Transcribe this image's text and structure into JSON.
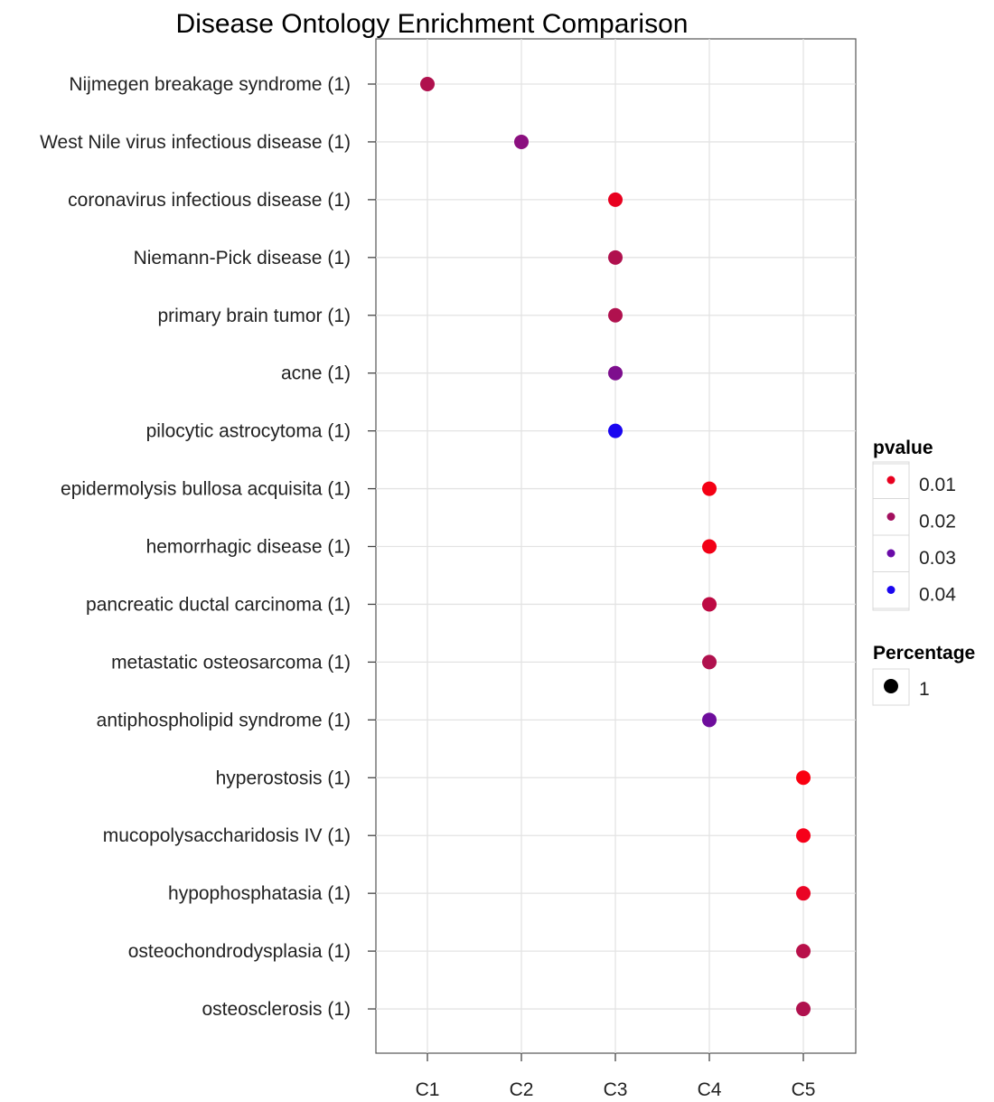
{
  "chart_data": {
    "type": "scatter",
    "title": "Disease Ontology Enrichment Comparison",
    "xlabel": "",
    "ylabel": "",
    "grid": true,
    "legend_position": "right",
    "x_categories": [
      "C1",
      "C2",
      "C3",
      "C4",
      "C5"
    ],
    "y_categories": [
      "Nijmegen breakage syndrome (1)",
      "West Nile virus infectious disease (1)",
      "coronavirus infectious disease (1)",
      "Niemann-Pick disease (1)",
      "primary brain tumor (1)",
      "acne (1)",
      "pilocytic astrocytoma (1)",
      "epidermolysis bullosa acquisita (1)",
      "hemorrhagic disease (1)",
      "pancreatic ductal carcinoma (1)",
      "metastatic osteosarcoma (1)",
      "antiphospholipid syndrome (1)",
      "hyperostosis (1)",
      "mucopolysaccharidosis IV (1)",
      "hypophosphatasia (1)",
      "osteochondrodysplasia (1)",
      "osteosclerosis (1)"
    ],
    "points": [
      {
        "x": "C1",
        "y": "Nijmegen breakage syndrome (1)",
        "color": "#b0114e"
      },
      {
        "x": "C2",
        "y": "West Nile virus infectious disease (1)",
        "color": "#8b0f7f"
      },
      {
        "x": "C3",
        "y": "coronavirus infectious disease (1)",
        "color": "#e8001f"
      },
      {
        "x": "C3",
        "y": "Niemann-Pick disease (1)",
        "color": "#b0114e"
      },
      {
        "x": "C3",
        "y": "primary brain tumor (1)",
        "color": "#b0114e"
      },
      {
        "x": "C3",
        "y": "acne (1)",
        "color": "#7d0e8d"
      },
      {
        "x": "C3",
        "y": "pilocytic astrocytoma (1)",
        "color": "#1a06f0"
      },
      {
        "x": "C4",
        "y": "epidermolysis bullosa acquisita (1)",
        "color": "#f40014"
      },
      {
        "x": "C4",
        "y": "hemorrhagic disease (1)",
        "color": "#f20016"
      },
      {
        "x": "C4",
        "y": "pancreatic ductal carcinoma (1)",
        "color": "#bd0a43"
      },
      {
        "x": "C4",
        "y": "metastatic osteosarcoma (1)",
        "color": "#b0114e"
      },
      {
        "x": "C4",
        "y": "antiphospholipid syndrome (1)",
        "color": "#6e0d9c"
      },
      {
        "x": "C5",
        "y": "hyperostosis (1)",
        "color": "#fa0010"
      },
      {
        "x": "C5",
        "y": "mucopolysaccharidosis IV (1)",
        "color": "#f6001a"
      },
      {
        "x": "C5",
        "y": "hypophosphatasia (1)",
        "color": "#ea0525"
      },
      {
        "x": "C5",
        "y": "osteochondrodysplasia (1)",
        "color": "#b8104a"
      },
      {
        "x": "C5",
        "y": "osteosclerosis (1)",
        "color": "#b0114e"
      }
    ],
    "legend": {
      "color": {
        "title": "pvalue",
        "entries": [
          {
            "label": "0.01",
            "color": "#e8001f"
          },
          {
            "label": "0.02",
            "color": "#a30f5e"
          },
          {
            "label": "0.03",
            "color": "#6a0ba8"
          },
          {
            "label": "0.04",
            "color": "#1a06f0"
          }
        ]
      },
      "size": {
        "title": "Percentage",
        "entries": [
          {
            "label": "1",
            "color": "#000000"
          }
        ]
      }
    }
  }
}
